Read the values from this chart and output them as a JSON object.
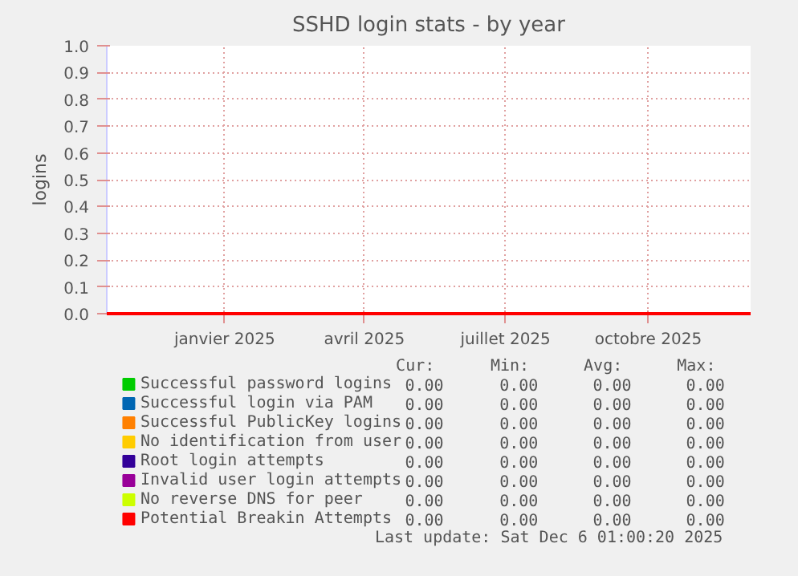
{
  "chart_data": {
    "type": "line",
    "title": "SSHD login stats - by year",
    "ylabel": "logins",
    "x": [
      "2024-10-17",
      "2025-12-06"
    ],
    "xlim": [
      "2024-10-17",
      "2025-12-06"
    ],
    "xticks": [
      {
        "value": "2025-01-01",
        "label": "janvier 2025"
      },
      {
        "value": "2025-04-01",
        "label": "avril 2025"
      },
      {
        "value": "2025-07-01",
        "label": "juillet 2025"
      },
      {
        "value": "2025-10-01",
        "label": "octobre 2025"
      }
    ],
    "ylim": [
      0,
      1
    ],
    "yticks": [
      {
        "value": 0,
        "label": "0.0"
      },
      0.1,
      0.2,
      0.3,
      0.4,
      0.5,
      0.6,
      0.7,
      0.8,
      0.9,
      {
        "value": 1,
        "label": "1.0"
      }
    ],
    "grid": true,
    "legend": "bottom",
    "series": [
      {
        "name": "Successful password logins",
        "color": "#00cc00",
        "values": [
          null,
          null
        ]
      },
      {
        "name": "Successful login via PAM",
        "color": "#0066b3",
        "values": [
          null,
          null
        ]
      },
      {
        "name": "Successful PublicKey logins",
        "color": "#ff8000",
        "values": [
          null,
          null
        ]
      },
      {
        "name": "No identification from user",
        "color": "#ffcc00",
        "values": [
          null,
          null
        ]
      },
      {
        "name": "Root login attempts",
        "color": "#330099",
        "values": [
          null,
          null
        ]
      },
      {
        "name": "Invalid user login attempts",
        "color": "#990099",
        "values": [
          null,
          null
        ]
      },
      {
        "name": "No reverse DNS for peer",
        "color": "#ccff00",
        "values": [
          null,
          null
        ]
      },
      {
        "name": "Potential Breakin Attempts",
        "color": "#ff0000",
        "values": [
          0,
          0
        ]
      }
    ],
    "annotations": [
      "Cur:",
      "Min:",
      "Avg:",
      "Max:",
      "0.00",
      "0.00",
      "0.00",
      "0.00",
      "0.00",
      "0.00",
      "0.00",
      "0.00",
      "0.00",
      "0.00",
      "0.00",
      "0.00",
      "0.00",
      "0.00",
      "0.00",
      "0.00",
      "0.00",
      "0.00",
      "0.00",
      "0.00",
      "0.00",
      "0.00",
      "0.00",
      "0.00",
      "0.00",
      "0.00",
      "0.00",
      "0.00",
      "0.00",
      "0.00",
      "0.00",
      "0.00",
      "Last update: Sat Dec  6 01:00:20 2025"
    ]
  }
}
